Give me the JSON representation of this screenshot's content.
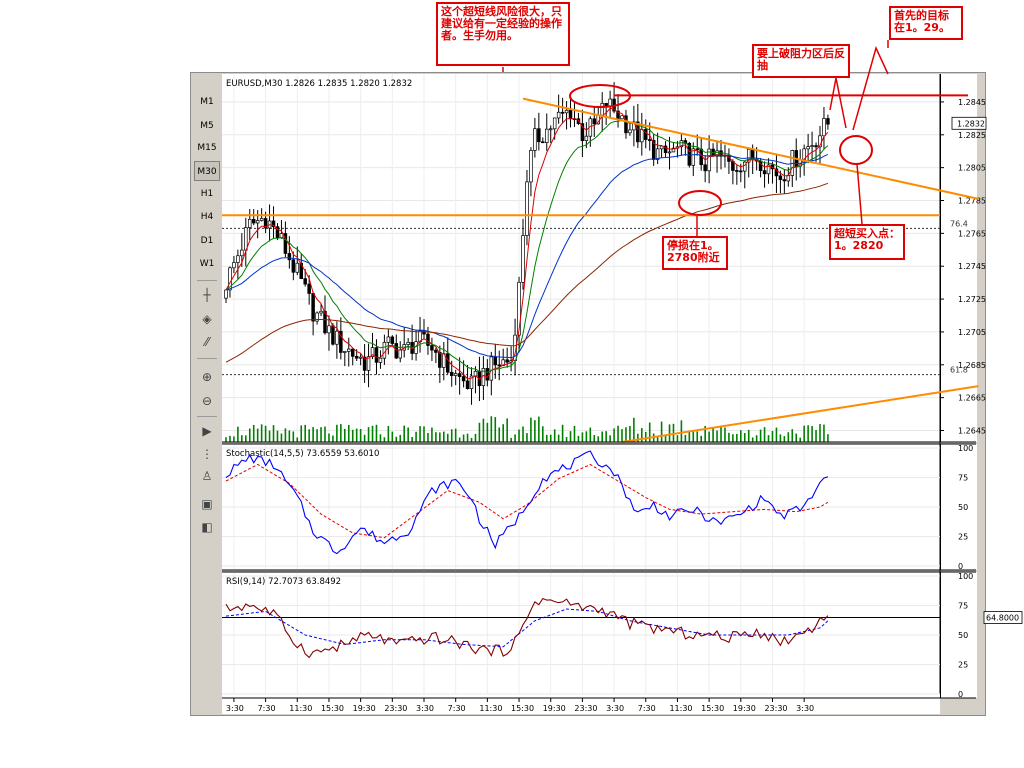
{
  "window": {
    "symbol_line": "EURUSD,M30",
    "ohlc": [
      "1.2826",
      "1.2835",
      "1.2820",
      "1.2832"
    ],
    "current_price": "1.2832"
  },
  "toolbar": {
    "timeframes": [
      "M1",
      "M5",
      "M15",
      "M30",
      "H1",
      "H4",
      "D1",
      "W1"
    ],
    "active_timeframe": "M30",
    "tools": [
      "crosshair-icon",
      "horizontal-line-icon",
      "text-icon",
      "zoom-in-icon",
      "zoom-out-icon",
      "scroll-icon",
      "period-separator-icon",
      "template-icon",
      "chart-window-icon",
      "tile-windows-icon"
    ]
  },
  "annotations": {
    "warning": "这个超短线风险很大，只建议给有一定经验的操作者。生手勿用。",
    "breakout": "要上破阻力区后反抽",
    "target": "首先的目标在1。29。",
    "stop_loss": "停损在1。2780附近",
    "entry": "超短买入点：1。2820"
  },
  "colors": {
    "annotation": "#e00000",
    "trendline": "#ff8c00",
    "candles": "#000000",
    "ma_fast": "#e00000",
    "ma_mid": "#008000",
    "ma_slow": "#0033cc",
    "ma_long": "#8b2500",
    "stoch_main": "#0000ff",
    "stoch_signal": "#e00000",
    "rsi_main": "#800000",
    "rsi_signal": "#0000ff"
  },
  "chart_data": [
    {
      "type": "candlestick",
      "title": "EURUSD,M30",
      "ylim": [
        1.2638,
        1.2862
      ],
      "y_ticks": [
        "1.2845",
        "1.2825",
        "1.2805",
        "1.2785",
        "1.2765",
        "1.2745",
        "1.2725",
        "1.2705",
        "1.2685",
        "1.2665",
        "1.2645"
      ],
      "x_ticks": [
        "3:30",
        "7:30",
        "11:30",
        "15:30",
        "19:30",
        "23:30",
        "3:30",
        "7:30",
        "11:30",
        "15:30",
        "19:30",
        "23:30",
        "3:30",
        "7:30",
        "11:30",
        "15:30",
        "19:30",
        "23:30",
        "3:30"
      ],
      "fib_levels": [
        {
          "label": "76.4",
          "value": 1.2768
        },
        {
          "label": "61.8",
          "value": 1.2679
        }
      ],
      "close_anchors": [
        [
          0,
          1.2735
        ],
        [
          3,
          1.2752
        ],
        [
          6,
          1.277
        ],
        [
          10,
          1.2775
        ],
        [
          14,
          1.276
        ],
        [
          18,
          1.274
        ],
        [
          22,
          1.2718
        ],
        [
          26,
          1.2705
        ],
        [
          29,
          1.2697
        ],
        [
          32,
          1.2692
        ],
        [
          35,
          1.2687
        ],
        [
          38,
          1.269
        ],
        [
          41,
          1.2697
        ],
        [
          45,
          1.2693
        ],
        [
          48,
          1.27
        ],
        [
          52,
          1.2696
        ],
        [
          55,
          1.2686
        ],
        [
          58,
          1.2678
        ],
        [
          62,
          1.2672
        ],
        [
          65,
          1.268
        ],
        [
          69,
          1.2686
        ],
        [
          72,
          1.2688
        ],
        [
          74,
          1.2732
        ],
        [
          76,
          1.28
        ],
        [
          78,
          1.2822
        ],
        [
          81,
          1.2828
        ],
        [
          84,
          1.2835
        ],
        [
          87,
          1.284
        ],
        [
          90,
          1.2826
        ],
        [
          93,
          1.283
        ],
        [
          96,
          1.2844
        ],
        [
          99,
          1.2838
        ],
        [
          102,
          1.283
        ],
        [
          106,
          1.282
        ],
        [
          110,
          1.2812
        ],
        [
          114,
          1.2816
        ],
        [
          118,
          1.2812
        ],
        [
          121,
          1.2808
        ],
        [
          124,
          1.2812
        ],
        [
          128,
          1.2806
        ],
        [
          131,
          1.281
        ],
        [
          134,
          1.2812
        ],
        [
          137,
          1.2806
        ],
        [
          140,
          1.28
        ],
        [
          144,
          1.2812
        ],
        [
          147,
          1.2818
        ],
        [
          150,
          1.2826
        ],
        [
          152,
          1.2832
        ]
      ],
      "volume": "histogram",
      "moving_averages": [
        {
          "name": "MA fast",
          "color": "#e00000",
          "period": 5
        },
        {
          "name": "MA mid",
          "color": "#008000",
          "period": 13
        },
        {
          "name": "MA slow",
          "color": "#0033cc",
          "period": 34
        },
        {
          "name": "MA long",
          "color": "#8b2500",
          "period": 89
        }
      ],
      "horizontal_lines": [
        {
          "value": 1.2776,
          "color": "#ff8c00"
        },
        {
          "value": 1.2849,
          "color": "#e00000"
        }
      ],
      "trendlines": [
        {
          "color": "#ff8c00",
          "from": [
            75,
            1.2847
          ],
          "to": [
            190,
            1.2786
          ]
        },
        {
          "color": "#ff8c00",
          "from": [
            100,
            1.2638
          ],
          "to": [
            190,
            1.2672
          ]
        }
      ]
    },
    {
      "type": "line",
      "title": "Stochastic(14,5,5)",
      "values_label": [
        "73.6559",
        "53.6010"
      ],
      "ylim": [
        0,
        100
      ],
      "y_ticks": [
        "100",
        "75",
        "50",
        "25",
        "0"
      ],
      "series": [
        {
          "color": "#0000ff",
          "anchors": [
            [
              0,
              78
            ],
            [
              6,
              92
            ],
            [
              12,
              86
            ],
            [
              18,
              58
            ],
            [
              22,
              30
            ],
            [
              28,
              12
            ],
            [
              34,
              32
            ],
            [
              40,
              20
            ],
            [
              46,
              30
            ],
            [
              52,
              64
            ],
            [
              58,
              72
            ],
            [
              62,
              58
            ],
            [
              64,
              40
            ],
            [
              68,
              18
            ],
            [
              74,
              42
            ],
            [
              80,
              74
            ],
            [
              86,
              84
            ],
            [
              92,
              94
            ],
            [
              98,
              80
            ],
            [
              104,
              44
            ],
            [
              108,
              52
            ],
            [
              112,
              42
            ],
            [
              118,
              48
            ],
            [
              124,
              36
            ],
            [
              130,
              44
            ],
            [
              136,
              58
            ],
            [
              140,
              42
            ],
            [
              146,
              50
            ],
            [
              150,
              70
            ],
            [
              152,
              74
            ]
          ]
        },
        {
          "color": "#e00000",
          "anchors": [
            [
              0,
              72
            ],
            [
              8,
              86
            ],
            [
              16,
              70
            ],
            [
              24,
              44
            ],
            [
              32,
              28
            ],
            [
              40,
              24
            ],
            [
              48,
              44
            ],
            [
              56,
              64
            ],
            [
              64,
              54
            ],
            [
              70,
              40
            ],
            [
              76,
              52
            ],
            [
              84,
              74
            ],
            [
              92,
              86
            ],
            [
              100,
              70
            ],
            [
              106,
              58
            ],
            [
              112,
              48
            ],
            [
              120,
              44
            ],
            [
              128,
              46
            ],
            [
              136,
              48
            ],
            [
              144,
              46
            ],
            [
              150,
              50
            ],
            [
              152,
              54
            ]
          ]
        }
      ]
    },
    {
      "type": "line",
      "title": "RSI(9,14)",
      "values_label": [
        "72.7073",
        "63.8492"
      ],
      "ylim": [
        0,
        100
      ],
      "y_ticks": [
        "100",
        "75",
        "50",
        "25",
        "0"
      ],
      "level": "64.8000",
      "series": [
        {
          "color": "#800000",
          "anchors": [
            [
              0,
              72
            ],
            [
              6,
              76
            ],
            [
              12,
              68
            ],
            [
              18,
              42
            ],
            [
              22,
              34
            ],
            [
              28,
              40
            ],
            [
              36,
              50
            ],
            [
              44,
              42
            ],
            [
              52,
              48
            ],
            [
              58,
              44
            ],
            [
              64,
              38
            ],
            [
              70,
              36
            ],
            [
              74,
              48
            ],
            [
              78,
              80
            ],
            [
              84,
              78
            ],
            [
              90,
              74
            ],
            [
              96,
              70
            ],
            [
              102,
              60
            ],
            [
              108,
              56
            ],
            [
              114,
              52
            ],
            [
              120,
              50
            ],
            [
              128,
              48
            ],
            [
              134,
              54
            ],
            [
              140,
              44
            ],
            [
              146,
              52
            ],
            [
              150,
              62
            ],
            [
              152,
              70
            ]
          ]
        },
        {
          "color": "#0000ff",
          "anchors": [
            [
              0,
              66
            ],
            [
              10,
              70
            ],
            [
              20,
              50
            ],
            [
              30,
              42
            ],
            [
              40,
              46
            ],
            [
              50,
              46
            ],
            [
              60,
              42
            ],
            [
              70,
              40
            ],
            [
              78,
              62
            ],
            [
              86,
              72
            ],
            [
              94,
              70
            ],
            [
              102,
              62
            ],
            [
              112,
              56
            ],
            [
              122,
              50
            ],
            [
              132,
              50
            ],
            [
              142,
              50
            ],
            [
              150,
              56
            ],
            [
              152,
              62
            ]
          ]
        }
      ]
    }
  ]
}
